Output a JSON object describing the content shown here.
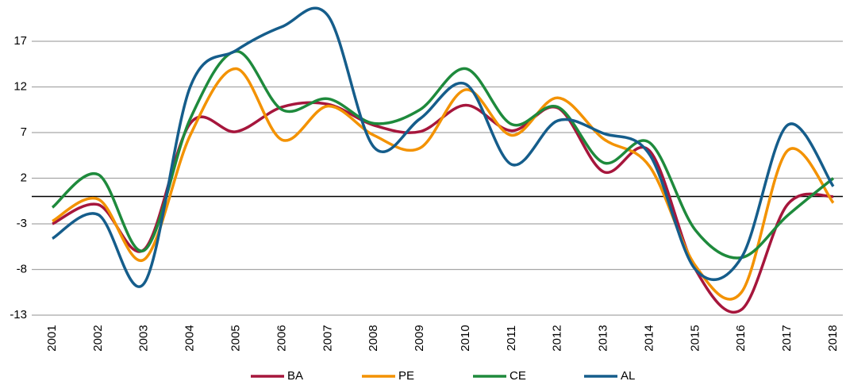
{
  "chart_data": {
    "type": "line",
    "categories": [
      "2001",
      "2002",
      "2003",
      "2004",
      "2005",
      "2006",
      "2007",
      "2008",
      "2009",
      "2010",
      "2011",
      "2012",
      "2013",
      "2014",
      "2015",
      "2016",
      "2017",
      "2018"
    ],
    "series": [
      {
        "name": "BA",
        "color": "#a6163c",
        "values": [
          -3.0,
          -0.9,
          -5.8,
          8.0,
          7.1,
          9.8,
          10.1,
          7.8,
          7.1,
          10.0,
          7.2,
          9.7,
          2.7,
          5.0,
          -8.0,
          -12.4,
          -0.9,
          0.0
        ]
      },
      {
        "name": "PE",
        "color": "#f39200",
        "values": [
          -2.7,
          -0.3,
          -6.9,
          6.7,
          14.0,
          6.2,
          9.9,
          6.7,
          5.3,
          11.7,
          6.7,
          10.8,
          6.3,
          3.3,
          -7.6,
          -10.5,
          5.0,
          -0.7
        ]
      },
      {
        "name": "CE",
        "color": "#1e8a3c",
        "values": [
          -1.2,
          2.4,
          -5.9,
          8.5,
          15.9,
          9.5,
          10.7,
          8.0,
          9.5,
          14.0,
          7.9,
          9.8,
          3.7,
          5.9,
          -3.7,
          -6.7,
          -2.1,
          2.0
        ]
      },
      {
        "name": "AL",
        "color": "#155d8b",
        "values": [
          -4.6,
          -2.0,
          -9.5,
          12.0,
          16.0,
          18.6,
          19.8,
          5.4,
          8.5,
          12.3,
          3.5,
          8.3,
          6.9,
          4.6,
          -8.0,
          -6.7,
          7.8,
          1.1
        ]
      }
    ],
    "ylim": [
      -13,
      21
    ],
    "yticks": [
      -13,
      -8,
      -3,
      2,
      7,
      12,
      17
    ],
    "grid": true,
    "legend": "bottom"
  }
}
